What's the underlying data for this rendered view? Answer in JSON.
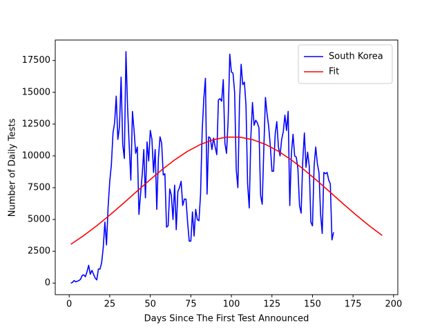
{
  "chart_data": {
    "type": "line",
    "xlabel": "Days Since The First Test Announced",
    "ylabel": "Number of Daily Tests",
    "xlim": [
      -8.6,
      202.6
    ],
    "ylim": [
      -910,
      19110
    ],
    "xticks": [
      0,
      25,
      50,
      75,
      100,
      125,
      150,
      175,
      200
    ],
    "yticks": [
      0,
      2500,
      5000,
      7500,
      10000,
      12500,
      15000,
      17500
    ],
    "grid": false,
    "legend": "upper right",
    "series": [
      {
        "name": "South Korea",
        "color": "#0000ff",
        "x": [
          1,
          2,
          3,
          4,
          5,
          6,
          7,
          8,
          9,
          10,
          11,
          12,
          13,
          14,
          15,
          16,
          17,
          18,
          19,
          20,
          21,
          22,
          23,
          24,
          25,
          26,
          27,
          28,
          29,
          30,
          31,
          32,
          33,
          34,
          35,
          36,
          37,
          38,
          39,
          40,
          41,
          42,
          43,
          44,
          45,
          46,
          47,
          48,
          49,
          50,
          51,
          52,
          53,
          54,
          55,
          56,
          57,
          58,
          59,
          60,
          61,
          62,
          63,
          64,
          65,
          66,
          67,
          68,
          69,
          70,
          71,
          72,
          73,
          74,
          75,
          76,
          77,
          78,
          79,
          80,
          81,
          82,
          83,
          84,
          85,
          86,
          87,
          88,
          89,
          90,
          91,
          92,
          93,
          94,
          95,
          96,
          97,
          98,
          99,
          100,
          101,
          102,
          103,
          104,
          105,
          106,
          107,
          108,
          109,
          110,
          111,
          112,
          113,
          114,
          115,
          116,
          117,
          118,
          119,
          120,
          121,
          122,
          123,
          124,
          125,
          126,
          127,
          128,
          129,
          130,
          131,
          132,
          133,
          134,
          135,
          136,
          137,
          138,
          139,
          140,
          141,
          142,
          143,
          144,
          145,
          146,
          147,
          148,
          149,
          150,
          151,
          152,
          153,
          154,
          155,
          156,
          157,
          158,
          159,
          160,
          161,
          162,
          163
        ],
        "values": [
          0,
          50,
          200,
          100,
          150,
          200,
          300,
          600,
          650,
          500,
          900,
          1400,
          700,
          1000,
          700,
          400,
          250,
          1100,
          1100,
          1600,
          2800,
          4800,
          3000,
          6000,
          8000,
          9300,
          11800,
          12600,
          14700,
          11300,
          12300,
          16200,
          10900,
          9800,
          18200,
          13800,
          10800,
          8100,
          13500,
          12000,
          10200,
          10700,
          5400,
          7000,
          8500,
          10500,
          6700,
          11100,
          9600,
          12000,
          11300,
          8700,
          10500,
          5800,
          9800,
          11500,
          11000,
          8500,
          8600,
          4400,
          4500,
          7400,
          6900,
          5000,
          7700,
          4200,
          7200,
          7500,
          8000,
          6100,
          6600,
          6600,
          4800,
          3300,
          3300,
          5600,
          3700,
          5800,
          5000,
          4900,
          7000,
          12000,
          14500,
          16100,
          7000,
          11500,
          11400,
          10500,
          11400,
          10700,
          10100,
          14400,
          14500,
          14300,
          16000,
          11000,
          10200,
          12800,
          18000,
          16600,
          16500,
          15000,
          8900,
          7500,
          14200,
          17200,
          15600,
          15800,
          14000,
          7800,
          5900,
          11500,
          14200,
          12400,
          12800,
          12600,
          12200,
          6900,
          6200,
          10600,
          14600,
          13300,
          12300,
          10800,
          8800,
          8800,
          11700,
          12700,
          10700,
          10000,
          11300,
          11900,
          13200,
          12000,
          13500,
          6100,
          10200,
          11700,
          10000,
          9900,
          9000,
          6100,
          5500,
          9600,
          11800,
          9100,
          10300,
          9200,
          4800,
          4500,
          9200,
          10700,
          9400,
          8700,
          5400,
          3900,
          8700,
          8600,
          8700,
          8100,
          7800,
          3400,
          4000
        ]
      },
      {
        "name": "Fit",
        "color": "#ff0000",
        "x": [
          1,
          9,
          17,
          25,
          33,
          41,
          49,
          57,
          65,
          73,
          81,
          89,
          97,
          105,
          113,
          121,
          129,
          137,
          145,
          153,
          161,
          169,
          177,
          185,
          193
        ],
        "values": [
          3050,
          3740,
          4510,
          5343,
          6225,
          7132,
          8033,
          8894,
          9683,
          10364,
          10905,
          11282,
          11476,
          11476,
          11282,
          10905,
          10364,
          9683,
          8894,
          8033,
          7132,
          6225,
          5343,
          4510,
          3740
        ]
      }
    ]
  }
}
